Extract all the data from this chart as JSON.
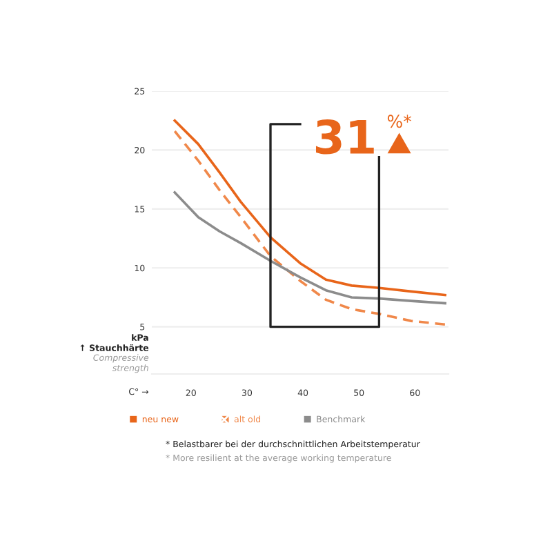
{
  "chart_data": {
    "type": "line",
    "xlabel": "C° →",
    "ylabel": "kPa ↑ Stauchhärte",
    "xlim": [
      13,
      66
    ],
    "ylim": [
      1,
      25
    ],
    "xticks": [
      20,
      30,
      40,
      50,
      60
    ],
    "yticks": [
      5,
      10,
      15,
      20,
      25
    ],
    "grid": "y",
    "legend": "bottom",
    "series": [
      {
        "name": "neu new",
        "color": "#e8651a",
        "line_style": "solid",
        "x": [
          17.1,
          21.3,
          25.1,
          28.9,
          34.2,
          39.5,
          44.1,
          48.7,
          53.6,
          59.3,
          65.4
        ],
        "values": [
          22.5,
          20.5,
          18.1,
          15.6,
          12.6,
          10.4,
          9.0,
          8.5,
          8.3,
          8.0,
          7.7
        ]
      },
      {
        "name": "alt old",
        "color": "#f0884a",
        "line_style": "dashed",
        "x": [
          17.1,
          21.3,
          25.1,
          28.9,
          34.2,
          39.5,
          44.1,
          48.7,
          53.6,
          59.3,
          65.4
        ],
        "values": [
          21.6,
          19.1,
          16.6,
          14.3,
          11.0,
          8.9,
          7.3,
          6.5,
          6.1,
          5.5,
          5.2
        ]
      },
      {
        "name": "Benchmark",
        "color": "#8c8c8c",
        "line_style": "solid",
        "x": [
          17.1,
          21.3,
          25.1,
          28.9,
          34.2,
          39.5,
          44.1,
          48.7,
          53.6,
          59.3,
          65.4
        ],
        "values": [
          16.4,
          14.3,
          13.1,
          12.1,
          10.6,
          9.2,
          8.1,
          7.5,
          7.4,
          7.2,
          7.0
        ]
      }
    ],
    "annotations": [
      "31",
      "%*",
      "Compressive strength",
      "* Belastbarer bei der durchschnittlichen Arbeitstemperatur",
      "* More resilient at the average working temperature"
    ]
  }
}
